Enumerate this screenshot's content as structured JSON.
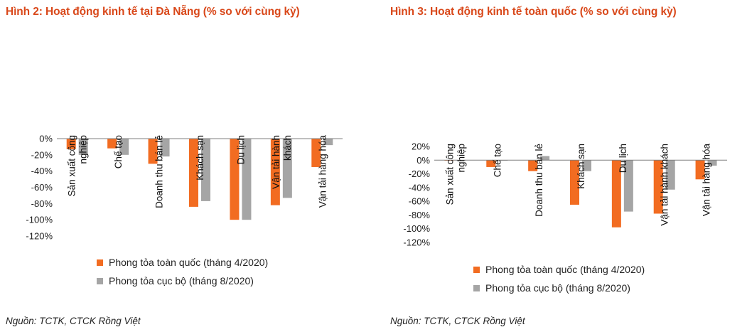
{
  "colors": {
    "title": "#d9481a",
    "series1": "#f26c21",
    "series2": "#a5a5a5"
  },
  "panels": [
    {
      "title": "Hình 2: Hoạt động kinh tế tại Đà Nẵng (% so với cùng kỳ)",
      "source": "Nguồn: TCTK, CTCK Rồng Việt",
      "legend": [
        "Phong tỏa toàn quốc (tháng 4/2020)",
        "Phong tỏa cục bộ (tháng 8/2020)"
      ]
    },
    {
      "title": "Hình 3: Hoạt động kinh tế toàn quốc (% so với cùng kỳ)",
      "source": "Nguồn: TCTK, CTCK Rồng Việt",
      "legend": [
        "Phong tỏa toàn quốc (tháng 4/2020)",
        "Phong tỏa cục bộ (tháng 8/2020)"
      ]
    }
  ],
  "chart_data": [
    {
      "type": "bar",
      "title": "Hình 2: Hoạt động kinh tế tại Đà Nẵng (% so với cùng kỳ)",
      "categories": [
        [
          "Sản xuất công",
          "nghiệp"
        ],
        [
          "Chế tạo"
        ],
        [
          "Doanh thu bán lẻ"
        ],
        [
          "Khách sạn"
        ],
        [
          "Du lịch"
        ],
        [
          "Vận tải hành",
          "khách"
        ],
        [
          "Vận tải hàng hóa"
        ]
      ],
      "series": [
        {
          "name": "Phong tỏa toàn quốc (tháng 4/2020)",
          "values": [
            -13,
            -12,
            -31,
            -84,
            -100,
            -82,
            -35
          ]
        },
        {
          "name": "Phong tỏa cục bộ (tháng 8/2020)",
          "values": [
            -20,
            -20,
            -22,
            -77,
            -100,
            -73,
            -8
          ]
        }
      ],
      "ylim": [
        -120,
        0
      ],
      "yticks": [
        0,
        -20,
        -40,
        -60,
        -80,
        -100,
        -120
      ],
      "ytick_labels": [
        "0%",
        "-20%",
        "-40%",
        "-60%",
        "-80%",
        "-100%",
        "-120%"
      ],
      "legend_position": "bottom-left"
    },
    {
      "type": "bar",
      "title": "Hình 3: Hoạt động kinh tế toàn quốc (% so với cùng kỳ)",
      "categories": [
        [
          "Sản xuất công",
          "nghiệp"
        ],
        [
          "Chế tạo"
        ],
        [
          "Doanh thu bán lẻ"
        ],
        [
          "Khách sạn"
        ],
        [
          "Du lịch"
        ],
        [
          "Vận tải hành khách"
        ],
        [
          "Vận tải hàng hóa"
        ]
      ],
      "series": [
        {
          "name": "Phong tỏa toàn quốc (tháng 4/2020)",
          "values": [
            -0.5,
            -10,
            -16,
            -65,
            -98,
            -78,
            -28
          ]
        },
        {
          "name": "Phong tỏa cục bộ (tháng 8/2020)",
          "values": [
            -0.5,
            0,
            6,
            -16,
            -75,
            -43,
            -8
          ]
        }
      ],
      "ylim": [
        -120,
        20
      ],
      "yticks": [
        20,
        0,
        -20,
        -40,
        -60,
        -80,
        -100,
        -120
      ],
      "ytick_labels": [
        "20%",
        "0%",
        "-20%",
        "-40%",
        "-60%",
        "-80%",
        "-100%",
        "-120%"
      ],
      "legend_position": "bottom-left"
    }
  ]
}
